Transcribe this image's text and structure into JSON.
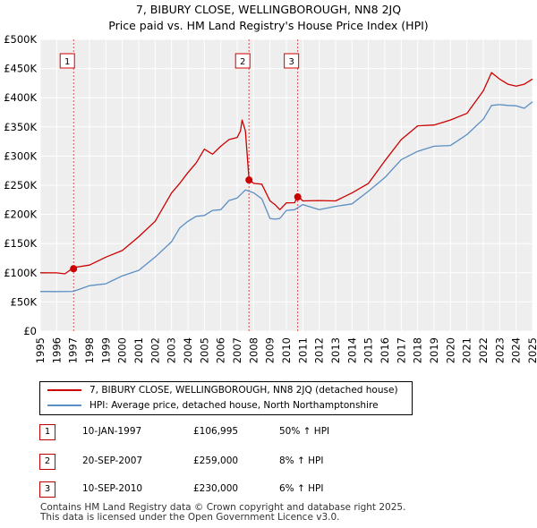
{
  "title": "7, BIBURY CLOSE, WELLINGBOROUGH, NN8 2JQ",
  "subtitle": "Price paid vs. HM Land Registry's House Price Index (HPI)",
  "colors": {
    "property": "#cc0000",
    "hpi": "#5b8ec4",
    "grid": "#cccccc",
    "plot_bg": "#eeeeee"
  },
  "chart_data": {
    "type": "line",
    "xlim": [
      1995,
      2025
    ],
    "ylim": [
      0,
      500000
    ],
    "x_ticks": [
      1995,
      1996,
      1997,
      1998,
      1999,
      2000,
      2001,
      2002,
      2003,
      2004,
      2005,
      2006,
      2007,
      2008,
      2009,
      2010,
      2011,
      2012,
      2013,
      2014,
      2015,
      2016,
      2017,
      2018,
      2019,
      2020,
      2021,
      2022,
      2023,
      2024,
      2025
    ],
    "y_ticks": [
      0,
      50000,
      100000,
      150000,
      200000,
      250000,
      300000,
      350000,
      400000,
      450000,
      500000
    ],
    "y_tick_labels": [
      "£0",
      "£50K",
      "£100K",
      "£150K",
      "£200K",
      "£250K",
      "£300K",
      "£350K",
      "£400K",
      "£450K",
      "£500K"
    ],
    "series": [
      {
        "name": "7, BIBURY CLOSE, WELLINGBOROUGH, NN8 2JQ (detached house)",
        "color": "#cc0000",
        "x": [
          1995.0,
          1996.0,
          1996.5,
          1997.03,
          1998.0,
          1999.0,
          2000.0,
          2001.0,
          2002.0,
          2003.0,
          2003.5,
          2004.0,
          2004.5,
          2005.0,
          2005.5,
          2006.0,
          2006.5,
          2007.0,
          2007.2,
          2007.3,
          2007.5,
          2007.72,
          2008.0,
          2008.5,
          2009.0,
          2009.3,
          2009.6,
          2010.0,
          2010.5,
          2010.7,
          2011.0,
          2012.0,
          2013.0,
          2014.0,
          2015.0,
          2016.0,
          2017.0,
          2018.0,
          2019.0,
          2020.0,
          2021.0,
          2022.0,
          2022.5,
          2023.0,
          2023.5,
          2024.0,
          2024.5,
          2025.0
        ],
        "y": [
          100000,
          98000,
          100000,
          106995,
          115000,
          125000,
          140000,
          160000,
          190000,
          235000,
          255000,
          270000,
          290000,
          310000,
          305000,
          315000,
          330000,
          330000,
          345000,
          360000,
          345000,
          259000,
          255000,
          250000,
          225000,
          215000,
          210000,
          218000,
          222000,
          230000,
          225000,
          222000,
          225000,
          235000,
          255000,
          290000,
          330000,
          350000,
          355000,
          360000,
          375000,
          410000,
          445000,
          430000,
          425000,
          418000,
          425000,
          432000
        ]
      },
      {
        "name": "HPI: Average price, detached house, North Northamptonshire",
        "color": "#5b8ec4",
        "x": [
          1995.0,
          1996.0,
          1997.0,
          1998.0,
          1999.0,
          2000.0,
          2001.0,
          2002.0,
          2003.0,
          2003.5,
          2004.0,
          2004.5,
          2005.0,
          2005.5,
          2006.0,
          2006.5,
          2007.0,
          2007.5,
          2008.0,
          2008.5,
          2009.0,
          2009.3,
          2009.6,
          2010.0,
          2010.5,
          2011.0,
          2012.0,
          2013.0,
          2014.0,
          2015.0,
          2016.0,
          2017.0,
          2018.0,
          2019.0,
          2020.0,
          2021.0,
          2022.0,
          2022.5,
          2023.0,
          2023.5,
          2024.0,
          2024.5,
          2025.0
        ],
        "y": [
          68000,
          66000,
          70000,
          76000,
          83000,
          93000,
          106000,
          125000,
          155000,
          175000,
          190000,
          195000,
          200000,
          205000,
          210000,
          222000,
          230000,
          240000,
          239000,
          225000,
          195000,
          190000,
          195000,
          205000,
          210000,
          215000,
          210000,
          212000,
          220000,
          238000,
          265000,
          292000,
          310000,
          315000,
          320000,
          335000,
          365000,
          385000,
          390000,
          385000,
          388000,
          380000,
          393000
        ]
      }
    ],
    "sales": [
      {
        "label": "1",
        "date": "10-JAN-1997",
        "x": 1997.03,
        "price": 106995,
        "price_text": "£106,995",
        "hpi_text": "50% ↑ HPI"
      },
      {
        "label": "2",
        "date": "20-SEP-2007",
        "x": 2007.72,
        "price": 259000,
        "price_text": "£259,000",
        "hpi_text": "8% ↑ HPI"
      },
      {
        "label": "3",
        "date": "10-SEP-2010",
        "x": 2010.69,
        "price": 230000,
        "price_text": "£230,000",
        "hpi_text": "6% ↑ HPI"
      }
    ]
  },
  "legend": {
    "property": "7, BIBURY CLOSE, WELLINGBOROUGH, NN8 2JQ (detached house)",
    "hpi": "HPI: Average price, detached house, North Northamptonshire"
  },
  "footer": {
    "line1": "Contains HM Land Registry data © Crown copyright and database right 2025.",
    "line2": "This data is licensed under the Open Government Licence v3.0."
  }
}
